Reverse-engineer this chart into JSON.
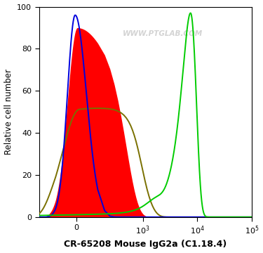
{
  "ylabel": "Relative cell number",
  "xlabel": "CR-65208 Mouse IgG2a (C1.18.4)",
  "watermark": "WWW.PTGLAB.COM",
  "ylim": [
    0,
    100
  ],
  "yticks": [
    0,
    20,
    40,
    60,
    80,
    100
  ],
  "background_color": "#ffffff",
  "plot_bg_color": "#ffffff",
  "red_fill_color": "#ff0000",
  "red_fill_alpha": 1.0,
  "blue_line_color": "#0000dd",
  "olive_line_color": "#7a7000",
  "green_line_color": "#00cc00",
  "linthresh": 150,
  "linscale": 0.35,
  "xlim_min": -300,
  "xlim_max": 100000
}
